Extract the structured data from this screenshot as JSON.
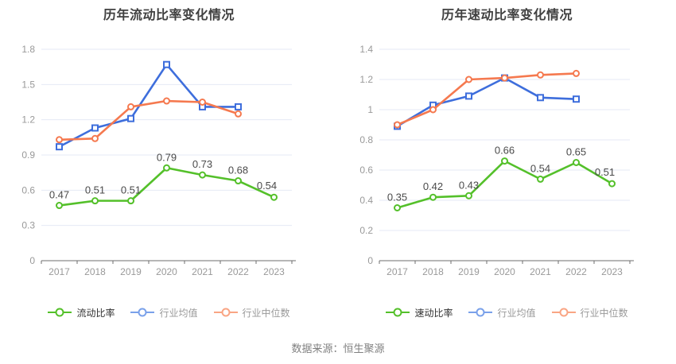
{
  "source_note": "数据来源：恒生聚源",
  "chart_data": [
    {
      "type": "line",
      "title": "历年流动比率变化情况",
      "categories": [
        "2017",
        "2018",
        "2019",
        "2020",
        "2021",
        "2022",
        "2023"
      ],
      "y_ticks": [
        "0",
        "0.3",
        "0.6",
        "0.9",
        "1.2",
        "1.5",
        "1.8"
      ],
      "ylim": [
        0,
        1.8
      ],
      "grid": true,
      "legend_position": "bottom",
      "series": [
        {
          "name": "流动比率",
          "color": "#54c02a",
          "legend_color": "#54c02a",
          "legend_text_color": "#333333",
          "marker": "circle",
          "show_labels": true,
          "values": [
            0.47,
            0.51,
            0.51,
            0.79,
            0.73,
            0.68,
            0.54
          ]
        },
        {
          "name": "行业均值",
          "color": "#3e6edc",
          "legend_color": "#7aa1ea",
          "legend_text_color": "#999999",
          "marker": "square",
          "show_labels": false,
          "values": [
            0.97,
            1.13,
            1.21,
            1.67,
            1.31,
            1.31
          ]
        },
        {
          "name": "行业中位数",
          "color": "#f5794f",
          "legend_color": "#f9a584",
          "legend_text_color": "#999999",
          "marker": "circle",
          "show_labels": false,
          "values": [
            1.03,
            1.04,
            1.31,
            1.36,
            1.35,
            1.25
          ]
        }
      ]
    },
    {
      "type": "line",
      "title": "历年速动比率变化情况",
      "categories": [
        "2017",
        "2018",
        "2019",
        "2020",
        "2021",
        "2022",
        "2023"
      ],
      "y_ticks": [
        "0",
        "0.2",
        "0.4",
        "0.6",
        "0.8",
        "1",
        "1.2",
        "1.4"
      ],
      "ylim": [
        0,
        1.4
      ],
      "grid": true,
      "legend_position": "bottom",
      "series": [
        {
          "name": "速动比率",
          "color": "#54c02a",
          "legend_color": "#54c02a",
          "legend_text_color": "#333333",
          "marker": "circle",
          "show_labels": true,
          "values": [
            0.35,
            0.42,
            0.43,
            0.66,
            0.54,
            0.65,
            0.51
          ]
        },
        {
          "name": "行业均值",
          "color": "#3e6edc",
          "legend_color": "#7aa1ea",
          "legend_text_color": "#999999",
          "marker": "square",
          "show_labels": false,
          "values": [
            0.89,
            1.03,
            1.09,
            1.21,
            1.08,
            1.07
          ]
        },
        {
          "name": "行业中位数",
          "color": "#f5794f",
          "legend_color": "#f9a584",
          "legend_text_color": "#999999",
          "marker": "circle",
          "show_labels": false,
          "values": [
            0.9,
            1.0,
            1.2,
            1.21,
            1.23,
            1.24
          ]
        }
      ]
    }
  ],
  "style_colors": {
    "grid_line": "#e4e9f4",
    "axis_line": "#6e6e6e",
    "tick_label": "#999999",
    "data_label": "#4a4a4a"
  }
}
